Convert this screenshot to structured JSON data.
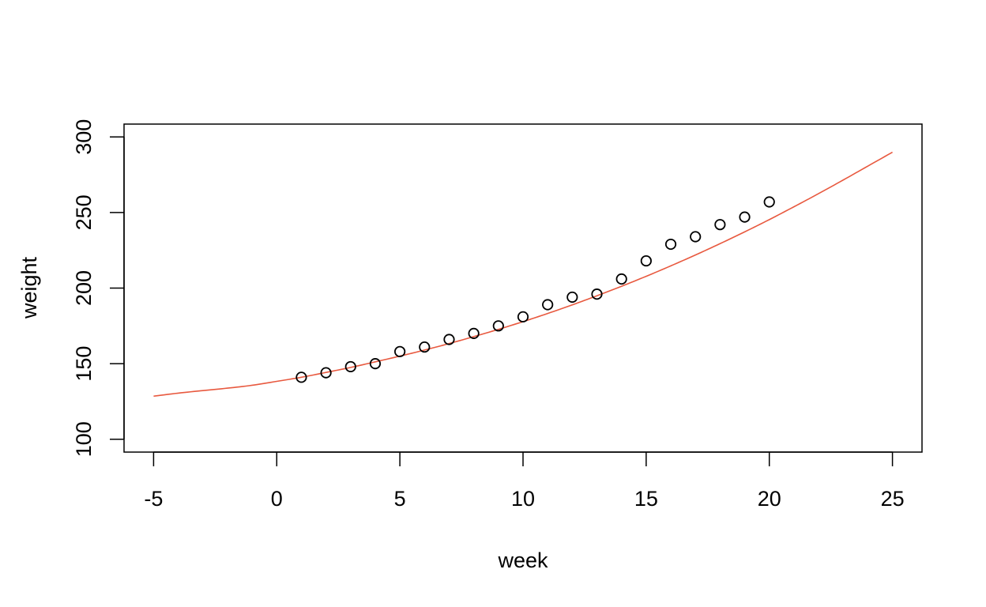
{
  "chart_data": {
    "type": "scatter",
    "title": "",
    "xlabel": "week",
    "ylabel": "weight",
    "xlim": [
      -6.2,
      26.2
    ],
    "ylim": [
      91.5,
      308.5
    ],
    "x_ticks": [
      -5,
      0,
      5,
      10,
      15,
      20,
      25
    ],
    "y_ticks": [
      100,
      150,
      200,
      250,
      300
    ],
    "grid": false,
    "legend": "none",
    "points": {
      "x": [
        1,
        2,
        3,
        4,
        5,
        6,
        7,
        8,
        9,
        10,
        11,
        12,
        13,
        14,
        15,
        16,
        17,
        18,
        19,
        20
      ],
      "y": [
        141,
        144,
        148,
        150,
        158,
        161,
        166,
        170,
        175,
        181,
        189,
        194,
        196,
        206,
        218,
        229,
        234,
        242,
        247,
        257
      ]
    },
    "curve": {
      "color": "#e8593f",
      "x": [
        -5,
        -4,
        -3,
        -2,
        -1,
        0,
        1,
        2,
        3,
        4,
        5,
        6,
        7,
        8,
        9,
        10,
        11,
        12,
        13,
        14,
        15,
        16,
        17,
        18,
        19,
        20,
        21,
        22,
        23,
        24,
        25
      ],
      "y": [
        128.5,
        130.5,
        132.2,
        133.8,
        135.7,
        138.3,
        141.0,
        144.2,
        147.5,
        151.2,
        155.0,
        159.0,
        163.3,
        167.9,
        172.7,
        177.8,
        183.2,
        188.9,
        194.9,
        201.2,
        207.8,
        214.7,
        221.9,
        229.4,
        237.2,
        245.3,
        253.8,
        262.5,
        271.5,
        280.7,
        289.9
      ]
    }
  }
}
